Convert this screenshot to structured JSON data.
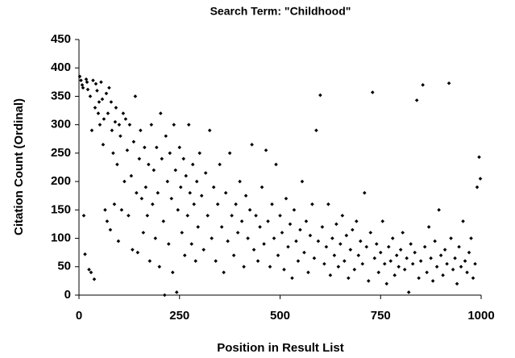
{
  "chart_data": {
    "type": "scatter",
    "title": "Search Term: \"Childhood\"",
    "x_label": "Position in Result List",
    "y_label": "Citation Count (Ordinal)",
    "color": "#000000",
    "grid": false,
    "xlim": [
      0,
      1000
    ],
    "xticks": [
      0,
      250,
      500,
      750,
      1000
    ],
    "ylim": [
      0,
      450
    ],
    "yticks": [
      0,
      50,
      100,
      150,
      200,
      250,
      300,
      350,
      400,
      450
    ],
    "x": [
      2,
      5,
      8,
      10,
      12,
      15,
      18,
      20,
      22,
      25,
      28,
      30,
      32,
      35,
      38,
      40,
      42,
      45,
      48,
      50,
      52,
      55,
      58,
      60,
      62,
      65,
      68,
      70,
      72,
      75,
      78,
      80,
      82,
      85,
      88,
      90,
      92,
      95,
      98,
      100,
      103,
      106,
      110,
      113,
      116,
      120,
      123,
      126,
      130,
      133,
      136,
      140,
      143,
      146,
      150,
      153,
      156,
      160,
      163,
      166,
      170,
      173,
      176,
      180,
      183,
      186,
      190,
      193,
      196,
      200,
      203,
      206,
      210,
      213,
      216,
      220,
      223,
      226,
      230,
      233,
      236,
      240,
      243,
      246,
      250,
      253,
      256,
      260,
      263,
      266,
      270,
      273,
      276,
      280,
      283,
      286,
      290,
      293,
      296,
      300,
      305,
      310,
      315,
      320,
      325,
      330,
      335,
      340,
      345,
      350,
      355,
      360,
      365,
      370,
      375,
      380,
      385,
      390,
      395,
      400,
      405,
      410,
      415,
      420,
      425,
      430,
      435,
      440,
      445,
      450,
      455,
      460,
      465,
      470,
      475,
      480,
      485,
      490,
      495,
      500,
      505,
      510,
      515,
      520,
      525,
      530,
      535,
      540,
      545,
      550,
      555,
      560,
      565,
      570,
      575,
      580,
      585,
      590,
      595,
      600,
      605,
      610,
      615,
      620,
      625,
      630,
      635,
      640,
      645,
      650,
      655,
      660,
      665,
      670,
      675,
      680,
      685,
      690,
      695,
      700,
      705,
      710,
      715,
      720,
      725,
      730,
      735,
      740,
      745,
      750,
      755,
      760,
      765,
      770,
      775,
      780,
      785,
      790,
      795,
      800,
      805,
      810,
      815,
      820,
      825,
      830,
      835,
      840,
      845,
      850,
      855,
      860,
      865,
      870,
      875,
      880,
      885,
      890,
      895,
      900,
      905,
      910,
      915,
      920,
      925,
      930,
      935,
      940,
      945,
      950,
      955,
      960,
      965,
      970,
      975,
      980,
      985,
      990,
      995,
      998
    ],
    "y": [
      385,
      378,
      370,
      365,
      140,
      72,
      380,
      375,
      362,
      45,
      350,
      40,
      290,
      378,
      28,
      330,
      372,
      360,
      320,
      340,
      300,
      375,
      345,
      265,
      310,
      150,
      355,
      130,
      320,
      365,
      115,
      340,
      290,
      250,
      160,
      305,
      330,
      230,
      95,
      300,
      280,
      150,
      320,
      200,
      310,
      255,
      140,
      300,
      210,
      80,
      270,
      350,
      180,
      75,
      240,
      290,
      170,
      110,
      260,
      190,
      140,
      230,
      60,
      300,
      160,
      220,
      100,
      260,
      180,
      50,
      320,
      240,
      130,
      0,
      280,
      200,
      90,
      250,
      170,
      40,
      300,
      220,
      5,
      150,
      260,
      190,
      110,
      240,
      70,
      210,
      140,
      300,
      180,
      90,
      230,
      160,
      60,
      200,
      120,
      250,
      175,
      80,
      215,
      140,
      290,
      100,
      190,
      60,
      160,
      230,
      120,
      40,
      180,
      95,
      250,
      140,
      70,
      160,
      110,
      200,
      130,
      50,
      175,
      100,
      150,
      265,
      80,
      140,
      60,
      120,
      190,
      90,
      255,
      130,
      50,
      160,
      100,
      230,
      70,
      140,
      110,
      45,
      170,
      85,
      125,
      30,
      150,
      95,
      60,
      115,
      200,
      75,
      130,
      40,
      105,
      160,
      65,
      290,
      95,
      352,
      120,
      55,
      85,
      160,
      35,
      100,
      70,
      125,
      50,
      90,
      140,
      60,
      105,
      30,
      80,
      115,
      45,
      130,
      70,
      95,
      55,
      180,
      85,
      25,
      110,
      357,
      65,
      90,
      40,
      75,
      130,
      55,
      20,
      85,
      60,
      100,
      35,
      70,
      50,
      80,
      110,
      45,
      65,
      5,
      90,
      55,
      75,
      343,
      30,
      60,
      370,
      85,
      40,
      120,
      65,
      25,
      95,
      50,
      150,
      70,
      35,
      80,
      55,
      373,
      100,
      45,
      65,
      20,
      85,
      50,
      130,
      60,
      40,
      75,
      100,
      30,
      55,
      190,
      243,
      205
    ]
  }
}
